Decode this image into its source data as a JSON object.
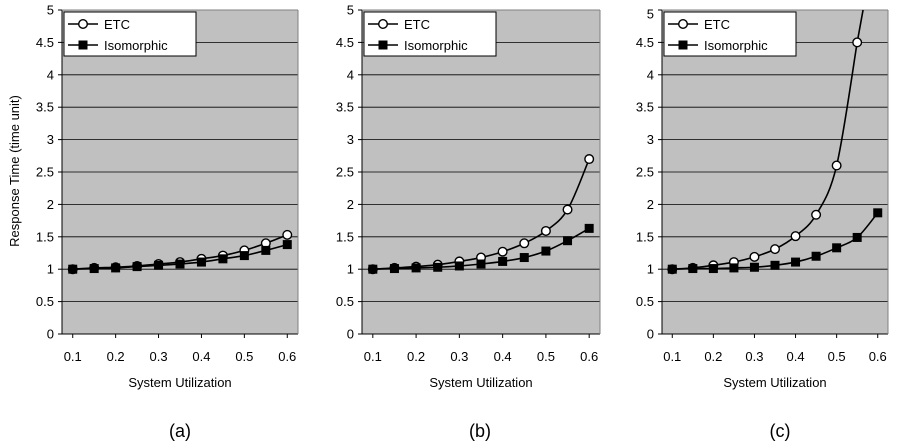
{
  "chart_data": [
    {
      "type": "line",
      "caption": "(a)",
      "xlabel": "System Utilization",
      "ylabel": "Response Time (time unit)",
      "x": [
        0.1,
        0.15,
        0.2,
        0.25,
        0.3,
        0.35,
        0.4,
        0.45,
        0.5,
        0.55,
        0.6
      ],
      "xticks": [
        "0.1",
        "0.2",
        "0.3",
        "0.4",
        "0.5",
        "0.6"
      ],
      "yticks": [
        "0",
        "0.5",
        "1",
        "1.5",
        "2",
        "2.5",
        "3",
        "3.5",
        "4",
        "4.5",
        "5"
      ],
      "xlim": [
        0.075,
        0.625
      ],
      "ylim": [
        0,
        5
      ],
      "grid": true,
      "legend": "top-left",
      "series": [
        {
          "name": "ETC",
          "marker": "open-circle",
          "values": [
            1.0,
            1.02,
            1.03,
            1.05,
            1.08,
            1.11,
            1.16,
            1.21,
            1.29,
            1.4,
            1.53
          ]
        },
        {
          "name": "Isomorphic",
          "marker": "filled-square",
          "values": [
            1.0,
            1.01,
            1.02,
            1.04,
            1.06,
            1.08,
            1.11,
            1.16,
            1.21,
            1.29,
            1.38
          ]
        }
      ]
    },
    {
      "type": "line",
      "caption": "(b)",
      "xlabel": "System Utilization",
      "ylabel": "",
      "x": [
        0.1,
        0.15,
        0.2,
        0.25,
        0.3,
        0.35,
        0.4,
        0.45,
        0.5,
        0.55,
        0.6
      ],
      "xticks": [
        "0.1",
        "0.2",
        "0.3",
        "0.4",
        "0.5",
        "0.6"
      ],
      "yticks": [
        "0",
        "0.5",
        "1",
        "1.5",
        "2",
        "2.5",
        "3",
        "3.5",
        "4",
        "4.5",
        "5"
      ],
      "xlim": [
        0.075,
        0.625
      ],
      "ylim": [
        0,
        5
      ],
      "grid": true,
      "legend": "top-left",
      "series": [
        {
          "name": "ETC",
          "marker": "open-circle",
          "values": [
            1.0,
            1.02,
            1.04,
            1.07,
            1.12,
            1.18,
            1.27,
            1.4,
            1.59,
            1.92,
            2.7
          ]
        },
        {
          "name": "Isomorphic",
          "marker": "filled-square",
          "values": [
            1.0,
            1.01,
            1.02,
            1.03,
            1.05,
            1.08,
            1.12,
            1.18,
            1.28,
            1.44,
            1.63
          ]
        }
      ]
    },
    {
      "type": "line",
      "caption": "(c)",
      "xlabel": "System Utilization",
      "ylabel": "",
      "x": [
        0.1,
        0.15,
        0.2,
        0.25,
        0.3,
        0.35,
        0.4,
        0.45,
        0.5,
        0.55,
        0.6
      ],
      "xticks": [
        "0.1",
        "0.2",
        "0.3",
        "0.4",
        "0.5",
        "0.6"
      ],
      "yticks": [
        "0",
        "0.5",
        "1",
        "1.5",
        "2",
        "2.5",
        "3",
        "3.5",
        "4",
        "4.5",
        "5"
      ],
      "xlim": [
        0.075,
        0.625
      ],
      "ylim": [
        0,
        5
      ],
      "grid": true,
      "legend": "top-left",
      "series": [
        {
          "name": "ETC",
          "marker": "open-circle",
          "x": [
            0.1,
            0.15,
            0.2,
            0.25,
            0.3,
            0.35,
            0.4,
            0.45,
            0.5,
            0.55
          ],
          "values": [
            1.0,
            1.02,
            1.06,
            1.11,
            1.19,
            1.31,
            1.51,
            1.84,
            2.6,
            4.5
          ],
          "continues_above": 5.2
        },
        {
          "name": "Isomorphic",
          "marker": "filled-square",
          "values": [
            1.0,
            1.01,
            1.01,
            1.02,
            1.03,
            1.06,
            1.11,
            1.2,
            1.33,
            1.49,
            1.87
          ]
        }
      ]
    }
  ]
}
